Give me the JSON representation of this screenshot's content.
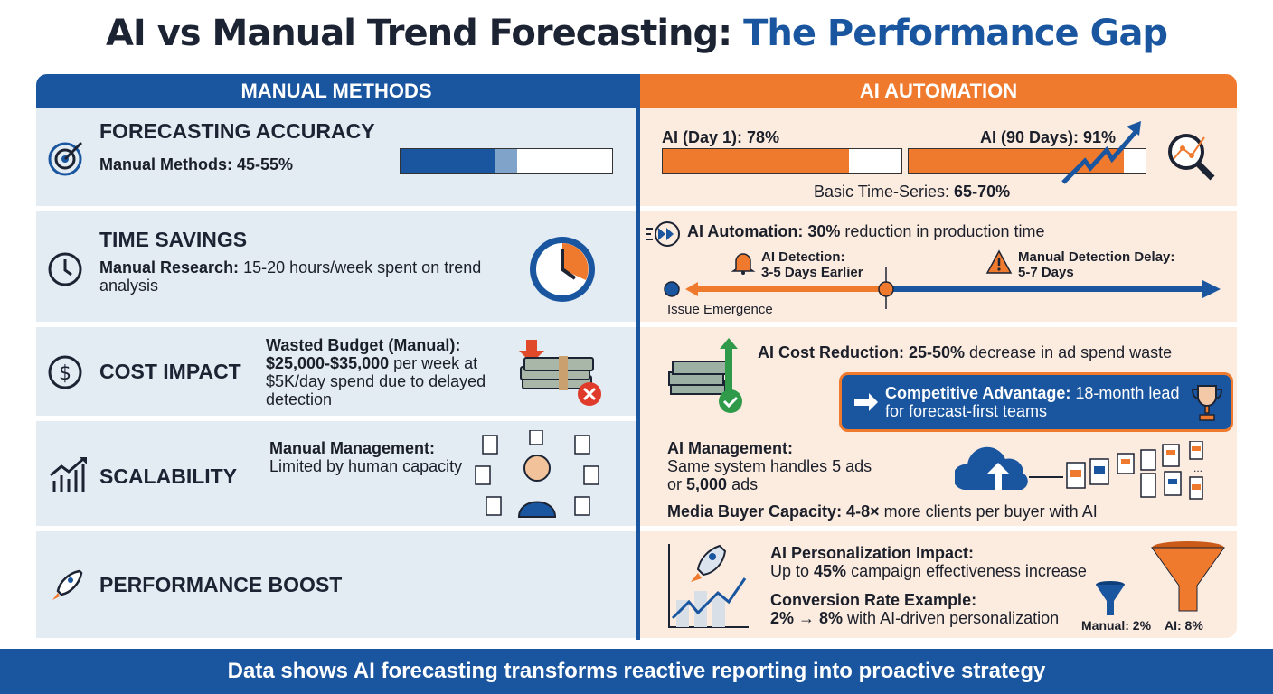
{
  "title": {
    "main": "AI vs Manual Trend Forecasting: ",
    "accent": "The Performance Gap"
  },
  "columns": {
    "manual": "MANUAL METHODS",
    "ai": "AI AUTOMATION"
  },
  "manual": {
    "accuracy": {
      "heading": "FORECASTING ACCURACY",
      "label": "Manual Methods: 45-55%",
      "range_low_pct": 45,
      "range_high_pct": 55
    },
    "time": {
      "heading": "TIME SAVINGS",
      "label_bold": "Manual Research:",
      "label": " 15-20 hours/week spent on trend analysis"
    },
    "cost": {
      "heading": "COST IMPACT",
      "label_bold": "Wasted Budget (Manual): $25,000-$35,000",
      "label": " per week at $5K/day spend due to delayed detection"
    },
    "scalability": {
      "heading": "SCALABILITY",
      "label_bold": "Manual Management:",
      "label": "Limited by human capacity"
    },
    "performance": {
      "heading": "PERFORMANCE BOOST"
    }
  },
  "ai": {
    "accuracy": {
      "day1_label": "AI (Day 1): 78%",
      "day1_pct": 78,
      "day90_label": "AI (90 Days): 91%",
      "day90_pct": 91,
      "basic_label": "Basic Time-Series: ",
      "basic_value": "65-70%"
    },
    "time": {
      "automation_bold": "AI Automation: 30%",
      "automation": " reduction in production time",
      "detection_title": "AI Detection:",
      "detection_value": "3-5 Days Earlier",
      "delay_title": "Manual Detection Delay:",
      "delay_value": "5-7 Days",
      "emergence": "Issue Emergence"
    },
    "cost": {
      "bold": "AI Cost Reduction: 25-50%",
      "text": " decrease in ad spend waste"
    },
    "advantage": {
      "bold": "Competitive Advantage:",
      "text": " 18-month lead for forecast-first teams"
    },
    "management": {
      "bold": "AI Management:",
      "text1": "Same system handles 5 ads",
      "text2_pre": "or ",
      "text2_bold": "5,000",
      "text2_post": " ads",
      "capacity_bold": "Media Buyer Capacity: 4-8×",
      "capacity": " more clients per buyer with AI"
    },
    "performance": {
      "impact_title": "AI Personalization Impact:",
      "impact_pre": "Up to ",
      "impact_bold": "45%",
      "impact_post": " campaign effectiveness increase",
      "conv_title": "Conversion Rate Example:",
      "conv_bold": "2% → 8%",
      "conv_post": " with AI-driven personalization",
      "manual_funnel": "Manual: 2%",
      "ai_funnel": "AI: 8%"
    }
  },
  "footer": "Data shows AI forecasting transforms reactive reporting into proactive strategy",
  "colors": {
    "blue": "#1a56a0",
    "orange": "#ef7a2e",
    "manual_bg": "#e3ebf3",
    "ai_bg": "#fcebdf"
  }
}
